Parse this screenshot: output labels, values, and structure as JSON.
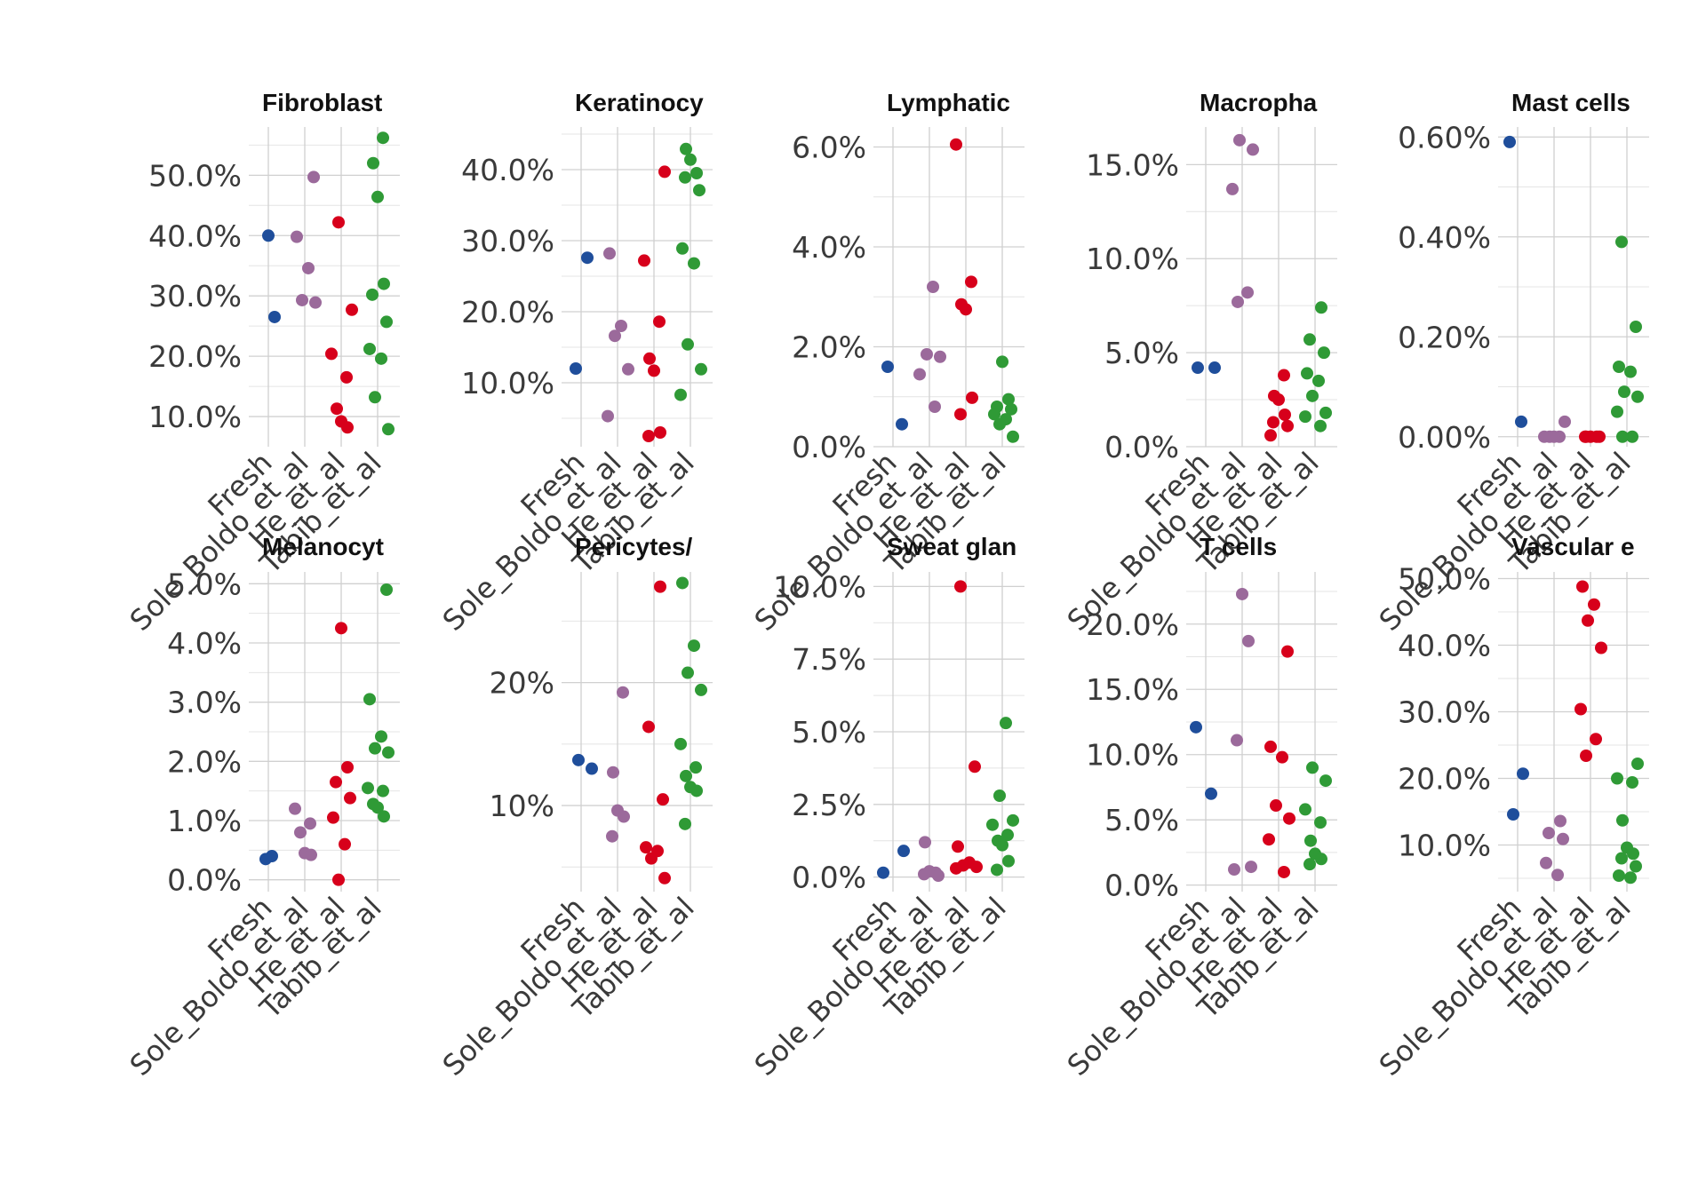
{
  "chart_data": {
    "type": "scatter",
    "layout": "faceted 2x5 strip plot",
    "categories": [
      "Fresh",
      "Sole_Boldo_et_al",
      "He_et_al",
      "Tabib_et_al"
    ],
    "colors": {
      "Fresh": "#1f4e9b",
      "Sole_Boldo_et_al": "#9b6a9b",
      "He_et_al": "#d7001b",
      "Tabib_et_al": "#2f9a36"
    },
    "legend": "none",
    "grid": true,
    "panels": [
      {
        "title": "Fibroblast",
        "ylim": [
          5,
          58
        ],
        "yticks": [
          10,
          20,
          30,
          40,
          50
        ],
        "ytick_labels": [
          "10.0%",
          "20.0%",
          "30.0%",
          "40.0%",
          "50.0%"
        ],
        "points": {
          "Fresh": [
            40.0,
            26.5
          ],
          "Sole_Boldo_et_al": [
            49.7,
            39.8,
            34.6,
            29.3,
            28.9
          ],
          "He_et_al": [
            42.2,
            27.7,
            20.4,
            16.5,
            11.3,
            9.2,
            8.2
          ],
          "Tabib_et_al": [
            56.2,
            52.0,
            46.4,
            32.0,
            30.2,
            25.7,
            21.2,
            19.6,
            13.2,
            7.9
          ]
        }
      },
      {
        "title": "Keratinocy",
        "ylim": [
          1,
          46
        ],
        "yticks": [
          10,
          20,
          30,
          40
        ],
        "ytick_labels": [
          "10.0%",
          "20.0%",
          "30.0%",
          "40.0%"
        ],
        "points": {
          "Fresh": [
            27.6,
            12.0
          ],
          "Sole_Boldo_et_al": [
            28.2,
            18.0,
            16.6,
            11.9,
            5.3
          ],
          "He_et_al": [
            39.7,
            27.2,
            18.6,
            13.4,
            11.7,
            3.0,
            2.5
          ],
          "Tabib_et_al": [
            42.9,
            41.4,
            39.5,
            38.9,
            37.1,
            28.9,
            26.8,
            15.4,
            11.9,
            8.3
          ]
        }
      },
      {
        "title": "Lymphatic",
        "ylim": [
          0,
          6.4
        ],
        "yticks": [
          0,
          2,
          4,
          6
        ],
        "ytick_labels": [
          "0.0%",
          "2.0%",
          "4.0%",
          "6.0%"
        ],
        "points": {
          "Fresh": [
            1.6,
            0.45
          ],
          "Sole_Boldo_et_al": [
            3.2,
            1.85,
            1.8,
            1.45,
            0.8
          ],
          "He_et_al": [
            6.05,
            3.3,
            2.85,
            2.75,
            0.98,
            0.65
          ],
          "Tabib_et_al": [
            1.7,
            0.95,
            0.8,
            0.75,
            0.65,
            0.55,
            0.45,
            0.2
          ]
        }
      },
      {
        "title": "Macropha",
        "ylim": [
          0,
          17
        ],
        "yticks": [
          0,
          5,
          10,
          15
        ],
        "ytick_labels": [
          "0.0%",
          "5.0%",
          "10.0%",
          "15.0%"
        ],
        "points": {
          "Fresh": [
            4.2,
            4.2
          ],
          "Sole_Boldo_et_al": [
            16.3,
            15.8,
            13.7,
            8.2,
            7.7
          ],
          "He_et_al": [
            3.8,
            2.7,
            2.5,
            1.7,
            1.3,
            1.1,
            0.6
          ],
          "Tabib_et_al": [
            7.4,
            5.7,
            5.0,
            3.9,
            3.5,
            2.7,
            1.8,
            1.6,
            1.1
          ]
        }
      },
      {
        "title": "Mast cells",
        "ylim": [
          -0.02,
          0.62
        ],
        "yticks": [
          0,
          0.2,
          0.4,
          0.6
        ],
        "ytick_labels": [
          "0.00%",
          "0.20%",
          "0.40%",
          "0.60%"
        ],
        "points": {
          "Fresh": [
            0.59,
            0.03
          ],
          "Sole_Boldo_et_al": [
            0.03,
            0.0,
            0.0,
            0.0,
            0.0
          ],
          "He_et_al": [
            0.0,
            0.0,
            0.0,
            0.0,
            0.0
          ],
          "Tabib_et_al": [
            0.39,
            0.22,
            0.14,
            0.13,
            0.09,
            0.08,
            0.05,
            0.0,
            0.0
          ]
        }
      },
      {
        "title": "Melanocyt",
        "ylim": [
          -0.2,
          5.2
        ],
        "yticks": [
          0,
          1,
          2,
          3,
          4,
          5
        ],
        "ytick_labels": [
          "0.0%",
          "1.0%",
          "2.0%",
          "3.0%",
          "4.0%",
          "5.0%"
        ],
        "points": {
          "Fresh": [
            0.4,
            0.35
          ],
          "Sole_Boldo_et_al": [
            1.2,
            0.95,
            0.8,
            0.45,
            0.42
          ],
          "He_et_al": [
            4.25,
            1.9,
            1.65,
            1.38,
            1.05,
            0.6,
            0.0
          ],
          "Tabib_et_al": [
            4.9,
            3.05,
            2.42,
            2.22,
            2.15,
            1.55,
            1.5,
            1.28,
            1.22,
            1.07
          ]
        }
      },
      {
        "title": "Pericytes/",
        "ylim": [
          3,
          29
        ],
        "yticks": [
          10,
          20
        ],
        "ytick_labels": [
          "10%",
          "20%"
        ],
        "points": {
          "Fresh": [
            13.7,
            13.0
          ],
          "Sole_Boldo_et_al": [
            19.2,
            12.7,
            9.6,
            9.1,
            7.5
          ],
          "He_et_al": [
            27.8,
            16.4,
            10.5,
            6.6,
            6.3,
            5.7,
            4.1
          ],
          "Tabib_et_al": [
            28.1,
            23.0,
            20.8,
            19.4,
            15.0,
            13.1,
            12.4,
            11.5,
            11.2,
            8.5
          ]
        }
      },
      {
        "title": "Sweat glan",
        "ylim": [
          -0.5,
          10.5
        ],
        "yticks": [
          0,
          2.5,
          5,
          7.5,
          10
        ],
        "ytick_labels": [
          "0.0%",
          "2.5%",
          "5.0%",
          "7.5%",
          "10.0%"
        ],
        "points": {
          "Fresh": [
            0.9,
            0.15
          ],
          "Sole_Boldo_et_al": [
            1.2,
            0.2,
            0.15,
            0.1,
            0.05
          ],
          "He_et_al": [
            10.0,
            3.8,
            1.05,
            0.5,
            0.4,
            0.35,
            0.3
          ],
          "Tabib_et_al": [
            5.3,
            2.8,
            1.95,
            1.8,
            1.45,
            1.25,
            1.1,
            0.55,
            0.25
          ]
        }
      },
      {
        "title": "T cells",
        "ylim": [
          -0.5,
          24
        ],
        "yticks": [
          0,
          5,
          10,
          15,
          20
        ],
        "ytick_labels": [
          "0.0%",
          "5.0%",
          "10.0%",
          "15.0%",
          "20.0%"
        ],
        "points": {
          "Fresh": [
            12.1,
            7.0
          ],
          "Sole_Boldo_et_al": [
            22.3,
            18.7,
            11.1,
            1.4,
            1.2
          ],
          "He_et_al": [
            17.9,
            10.6,
            9.8,
            6.1,
            5.1,
            3.5,
            1.0
          ],
          "Tabib_et_al": [
            9.0,
            8.0,
            5.8,
            4.8,
            3.4,
            2.4,
            2.0,
            1.6
          ]
        }
      },
      {
        "title": "Vascular e",
        "ylim": [
          3,
          51
        ],
        "yticks": [
          10,
          20,
          30,
          40,
          50
        ],
        "ytick_labels": [
          "10.0%",
          "20.0%",
          "30.0%",
          "40.0%",
          "50.0%"
        ],
        "points": {
          "Fresh": [
            20.7,
            14.6
          ],
          "Sole_Boldo_et_al": [
            13.6,
            11.8,
            10.9,
            7.3,
            5.5
          ],
          "He_et_al": [
            48.8,
            46.1,
            43.7,
            39.6,
            30.4,
            25.9,
            23.4
          ],
          "Tabib_et_al": [
            22.2,
            20.0,
            19.4,
            13.7,
            9.6,
            8.7,
            8.0,
            6.8,
            5.4,
            5.1
          ]
        }
      }
    ]
  }
}
